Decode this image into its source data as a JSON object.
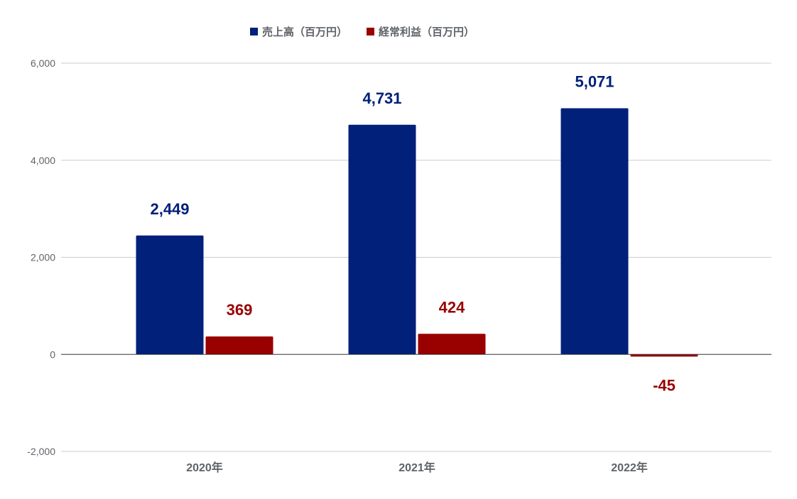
{
  "chart_data": {
    "type": "bar",
    "categories": [
      "2020年",
      "2021年",
      "2022年"
    ],
    "series": [
      {
        "name": "売上高（百万円）",
        "values": [
          2449,
          4731,
          5071
        ],
        "color": "#00207a",
        "labels": [
          "2,449",
          "4,731",
          "5,071"
        ]
      },
      {
        "name": "経常利益（百万円）",
        "values": [
          369,
          424,
          -45
        ],
        "color": "#990000",
        "labels": [
          "369",
          "424",
          "-45"
        ]
      }
    ],
    "ylim": [
      -2000,
      6000
    ],
    "yticks": [
      -2000,
      0,
      2000,
      4000,
      6000
    ],
    "ytick_labels": [
      "-2,000",
      "0",
      "2,000",
      "4,000",
      "6,000"
    ],
    "grid": true,
    "legend_position": "top-center",
    "title": "",
    "xlabel": "",
    "ylabel": ""
  }
}
